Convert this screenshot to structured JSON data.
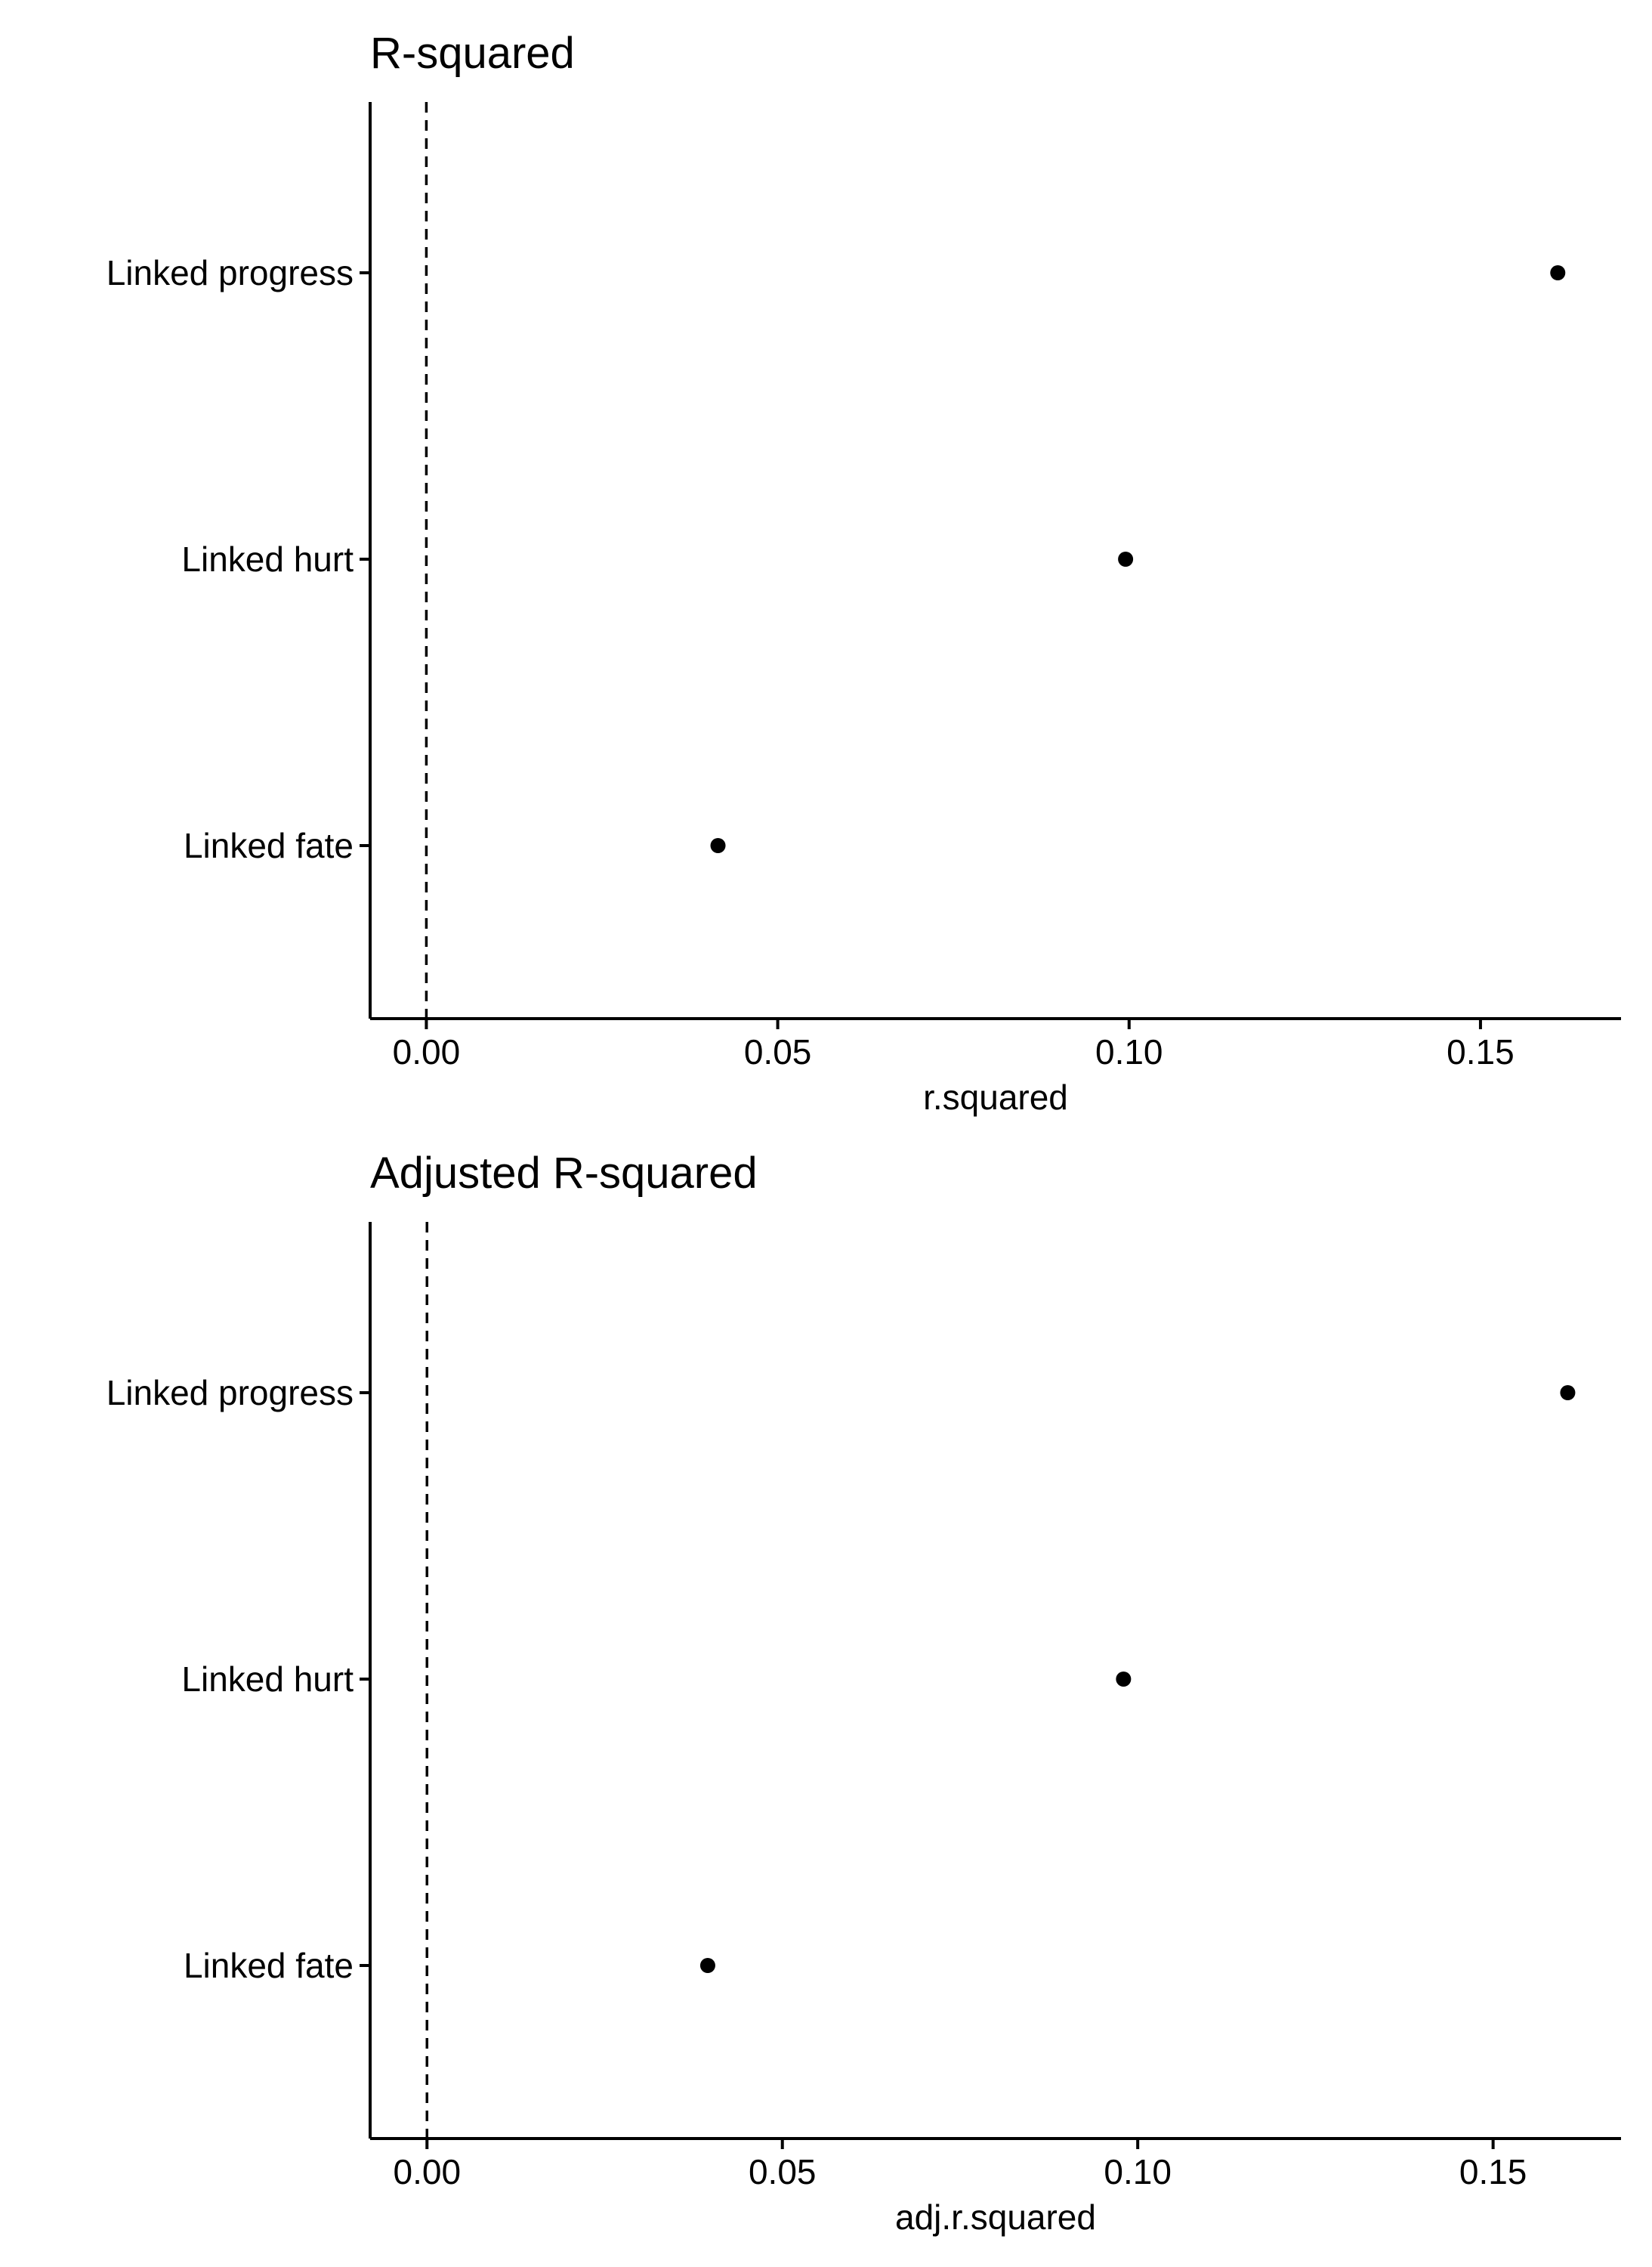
{
  "chart_data": [
    {
      "type": "scatter",
      "title": "R-squared",
      "xlabel": "r.squared",
      "ylabel": "",
      "xlim": [
        -0.008,
        0.17
      ],
      "x_ticks": [
        0.0,
        0.05,
        0.1,
        0.15
      ],
      "x_tick_labels": [
        "0.00",
        "0.05",
        "0.10",
        "0.15"
      ],
      "reference_line": {
        "x": 0.0,
        "style": "dashed"
      },
      "categories": [
        "Linked progress",
        "Linked hurt",
        "Linked fate"
      ],
      "series": [
        {
          "points": [
            {
              "category": "Linked progress",
              "x": 0.161
            },
            {
              "category": "Linked hurt",
              "x": 0.0995
            },
            {
              "category": "Linked fate",
              "x": 0.0415
            }
          ]
        }
      ],
      "grid": false,
      "point_color": "#000000"
    },
    {
      "type": "scatter",
      "title": "Adjusted R-squared",
      "xlabel": "adj.r.squared",
      "ylabel": "",
      "xlim": [
        -0.008,
        0.168
      ],
      "x_ticks": [
        0.0,
        0.05,
        0.1,
        0.15
      ],
      "x_tick_labels": [
        "0.00",
        "0.05",
        "0.10",
        "0.15"
      ],
      "reference_line": {
        "x": 0.0,
        "style": "dashed"
      },
      "categories": [
        "Linked progress",
        "Linked hurt",
        "Linked fate"
      ],
      "series": [
        {
          "points": [
            {
              "category": "Linked progress",
              "x": 0.1605
            },
            {
              "category": "Linked hurt",
              "x": 0.098
            },
            {
              "category": "Linked fate",
              "x": 0.0395
            }
          ]
        }
      ],
      "grid": false,
      "point_color": "#000000"
    }
  ]
}
